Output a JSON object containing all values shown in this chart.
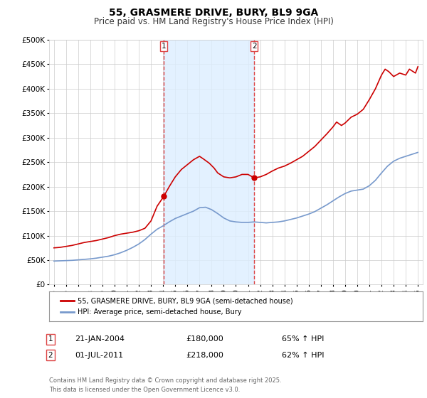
{
  "title": "55, GRASMERE DRIVE, BURY, BL9 9GA",
  "subtitle": "Price paid vs. HM Land Registry's House Price Index (HPI)",
  "title_fontsize": 10,
  "subtitle_fontsize": 8.5,
  "bg_color": "#ffffff",
  "plot_bg_color": "#ffffff",
  "grid_color": "#cccccc",
  "red_line_color": "#cc0000",
  "blue_line_color": "#7799cc",
  "shaded_color": "#ddeeff",
  "vline_color": "#dd4444",
  "marker1_date": 2004.05,
  "marker1_value": 180000,
  "marker2_date": 2011.5,
  "marker2_value": 218000,
  "vline1_x": 2004.05,
  "vline2_x": 2011.5,
  "ylim": [
    0,
    500000
  ],
  "xlim_start": 1994.6,
  "xlim_end": 2025.4,
  "ytick_values": [
    0,
    50000,
    100000,
    150000,
    200000,
    250000,
    300000,
    350000,
    400000,
    450000,
    500000
  ],
  "ytick_labels": [
    "£0",
    "£50K",
    "£100K",
    "£150K",
    "£200K",
    "£250K",
    "£300K",
    "£350K",
    "£400K",
    "£450K",
    "£500K"
  ],
  "xtick_years": [
    1995,
    1996,
    1997,
    1998,
    1999,
    2000,
    2001,
    2002,
    2003,
    2004,
    2005,
    2006,
    2007,
    2008,
    2009,
    2010,
    2011,
    2012,
    2013,
    2014,
    2015,
    2016,
    2017,
    2018,
    2019,
    2020,
    2021,
    2022,
    2023,
    2024,
    2025
  ],
  "legend_label_red": "55, GRASMERE DRIVE, BURY, BL9 9GA (semi-detached house)",
  "legend_label_blue": "HPI: Average price, semi-detached house, Bury",
  "annotation1_date": "21-JAN-2004",
  "annotation1_price": "£180,000",
  "annotation1_hpi": "65% ↑ HPI",
  "annotation2_date": "01-JUL-2011",
  "annotation2_price": "£218,000",
  "annotation2_hpi": "62% ↑ HPI",
  "footer": "Contains HM Land Registry data © Crown copyright and database right 2025.\nThis data is licensed under the Open Government Licence v3.0.",
  "red_x": [
    1995.0,
    1995.5,
    1996.0,
    1996.5,
    1997.0,
    1997.5,
    1998.0,
    1998.5,
    1999.0,
    1999.5,
    2000.0,
    2000.5,
    2001.0,
    2001.5,
    2002.0,
    2002.5,
    2003.0,
    2003.5,
    2004.05,
    2004.5,
    2005.0,
    2005.5,
    2006.0,
    2006.5,
    2007.0,
    2007.3,
    2007.8,
    2008.2,
    2008.5,
    2009.0,
    2009.5,
    2010.0,
    2010.5,
    2011.0,
    2011.5,
    2012.0,
    2012.5,
    2013.0,
    2013.5,
    2014.0,
    2014.5,
    2015.0,
    2015.5,
    2016.0,
    2016.5,
    2017.0,
    2017.5,
    2018.0,
    2018.3,
    2018.7,
    2019.0,
    2019.5,
    2020.0,
    2020.5,
    2021.0,
    2021.5,
    2022.0,
    2022.3,
    2022.6,
    2023.0,
    2023.5,
    2024.0,
    2024.3,
    2024.8,
    2025.0
  ],
  "red_y": [
    75000,
    76000,
    78000,
    80000,
    83000,
    86000,
    88000,
    90000,
    93000,
    96000,
    100000,
    103000,
    105000,
    107000,
    110000,
    115000,
    130000,
    160000,
    180000,
    200000,
    220000,
    235000,
    245000,
    255000,
    262000,
    257000,
    248000,
    238000,
    228000,
    220000,
    218000,
    220000,
    225000,
    225000,
    218000,
    220000,
    225000,
    232000,
    238000,
    242000,
    248000,
    255000,
    262000,
    272000,
    282000,
    295000,
    308000,
    322000,
    332000,
    325000,
    330000,
    342000,
    348000,
    358000,
    378000,
    400000,
    428000,
    440000,
    435000,
    425000,
    432000,
    428000,
    440000,
    432000,
    445000
  ],
  "blue_x": [
    1995.0,
    1995.5,
    1996.0,
    1996.5,
    1997.0,
    1997.5,
    1998.0,
    1998.5,
    1999.0,
    1999.5,
    2000.0,
    2000.5,
    2001.0,
    2001.5,
    2002.0,
    2002.5,
    2003.0,
    2003.5,
    2004.0,
    2004.5,
    2005.0,
    2005.5,
    2006.0,
    2006.5,
    2007.0,
    2007.5,
    2008.0,
    2008.5,
    2009.0,
    2009.5,
    2010.0,
    2010.5,
    2011.0,
    2011.5,
    2012.0,
    2012.5,
    2013.0,
    2013.5,
    2014.0,
    2014.5,
    2015.0,
    2015.5,
    2016.0,
    2016.5,
    2017.0,
    2017.5,
    2018.0,
    2018.5,
    2019.0,
    2019.5,
    2020.0,
    2020.5,
    2021.0,
    2021.5,
    2022.0,
    2022.5,
    2023.0,
    2023.5,
    2024.0,
    2024.5,
    2025.0
  ],
  "blue_y": [
    48000,
    48500,
    49000,
    49500,
    50500,
    51500,
    52500,
    54000,
    56000,
    58000,
    61000,
    65000,
    70000,
    76000,
    83000,
    92000,
    103000,
    113000,
    120000,
    128000,
    135000,
    140000,
    145000,
    150000,
    157000,
    158000,
    153000,
    145000,
    136000,
    130000,
    128000,
    127000,
    127000,
    128000,
    127000,
    126000,
    127000,
    128000,
    130000,
    133000,
    136000,
    140000,
    144000,
    149000,
    156000,
    163000,
    171000,
    179000,
    186000,
    191000,
    193000,
    195000,
    202000,
    213000,
    228000,
    242000,
    252000,
    258000,
    262000,
    266000,
    270000
  ]
}
